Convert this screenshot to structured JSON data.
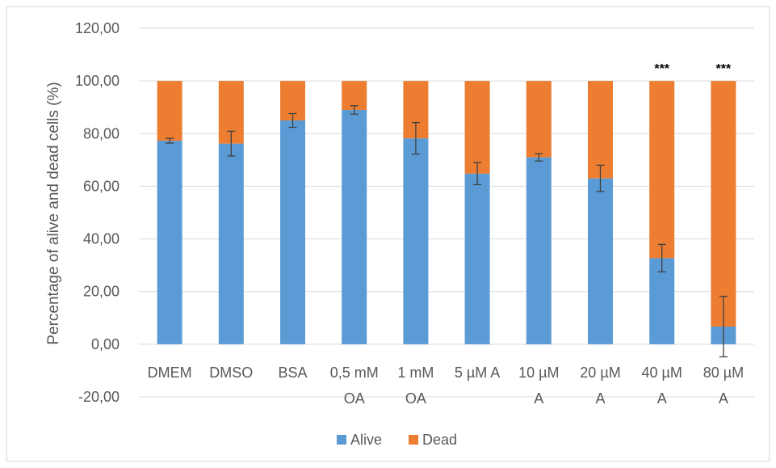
{
  "chart_data": {
    "type": "bar",
    "stacked": true,
    "ylabel": "Percentage of alive and dead cells (%)",
    "xlabel": "",
    "title": "",
    "ylim": [
      -20,
      120
    ],
    "yticks": [
      "-20,00",
      "0,00",
      "20,00",
      "40,00",
      "60,00",
      "80,00",
      "100,00",
      "120,00"
    ],
    "ytick_values": [
      -20,
      0,
      20,
      40,
      60,
      80,
      100,
      120
    ],
    "grid": true,
    "legend_position": "bottom",
    "categories": [
      [
        "DMEM"
      ],
      [
        "DMSO"
      ],
      [
        "BSA"
      ],
      [
        "0,5 mM",
        "OA"
      ],
      [
        "1 mM",
        "OA"
      ],
      [
        "5 µM A"
      ],
      [
        "10 µM",
        "A"
      ],
      [
        "20 µM",
        "A"
      ],
      [
        "40 µM",
        "A"
      ],
      [
        "80 µM",
        "A"
      ]
    ],
    "series": [
      {
        "name": "Alive",
        "color": "#5b9bd5",
        "values": [
          77.3,
          76.2,
          85.0,
          89.0,
          78.2,
          64.8,
          71.0,
          63.0,
          32.7,
          6.7
        ]
      },
      {
        "name": "Dead",
        "color": "#ed7d31",
        "values": [
          22.7,
          23.8,
          15.0,
          11.0,
          21.8,
          35.2,
          29.0,
          37.0,
          67.3,
          93.3
        ]
      }
    ],
    "error_bars": [
      0.9,
      4.7,
      2.6,
      1.6,
      6.0,
      4.2,
      1.4,
      5.0,
      5.2,
      11.5
    ],
    "annotations": [
      {
        "category_index": 8,
        "text": "***"
      },
      {
        "category_index": 9,
        "text": "***"
      }
    ]
  }
}
